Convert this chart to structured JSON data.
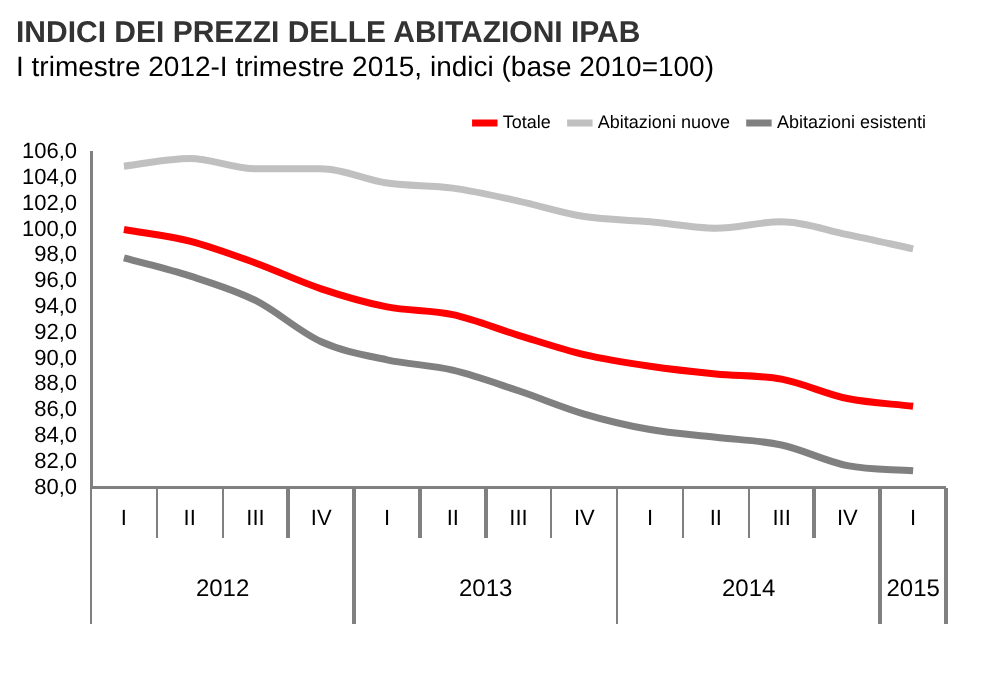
{
  "chart_data": {
    "type": "line",
    "title": "INDICI DEI PREZZI DELLE ABITAZIONI IPAB",
    "subtitle": "I trimestre 2012-I trimestre 2015, indici (base 2010=100)",
    "categories": [
      "I",
      "II",
      "III",
      "IV",
      "I",
      "II",
      "III",
      "IV",
      "I",
      "II",
      "III",
      "IV",
      "I"
    ],
    "series": [
      {
        "name": "Totale",
        "color": "#ff0000",
        "values": [
          100.0,
          99.1,
          97.4,
          95.4,
          94.0,
          93.4,
          91.8,
          90.3,
          89.4,
          88.8,
          88.4,
          86.9,
          86.3
        ]
      },
      {
        "name": "Abitazioni nuove",
        "color": "#c0c0c0",
        "values": [
          104.9,
          105.5,
          104.7,
          104.7,
          103.6,
          103.2,
          102.2,
          101.0,
          100.6,
          100.1,
          100.6,
          99.6,
          98.5
        ]
      },
      {
        "name": "Abitazioni esistenti",
        "color": "#808080",
        "values": [
          97.8,
          96.4,
          94.5,
          91.3,
          89.9,
          89.1,
          87.5,
          85.7,
          84.5,
          83.9,
          83.3,
          81.7,
          81.3
        ]
      }
    ],
    "ylim": [
      80,
      106
    ],
    "yticks": [
      {
        "value": 80,
        "label": "80,0"
      },
      {
        "value": 82,
        "label": "82,0"
      },
      {
        "value": 84,
        "label": "84,0"
      },
      {
        "value": 86,
        "label": "86,0"
      },
      {
        "value": 88,
        "label": "88,0"
      },
      {
        "value": 90,
        "label": "90,0"
      },
      {
        "value": 92,
        "label": "92,0"
      },
      {
        "value": 94,
        "label": "94,0"
      },
      {
        "value": 96,
        "label": "96,0"
      },
      {
        "value": 98,
        "label": "98,0"
      },
      {
        "value": 100,
        "label": "100,0"
      },
      {
        "value": 102,
        "label": "102,0"
      },
      {
        "value": 104,
        "label": "104,0"
      },
      {
        "value": 106,
        "label": "106,0"
      }
    ],
    "annotations": [
      "2012",
      "2013",
      "2014",
      "2015"
    ],
    "grid": false,
    "legend": "top",
    "marker": "none",
    "line_style": "solid"
  }
}
